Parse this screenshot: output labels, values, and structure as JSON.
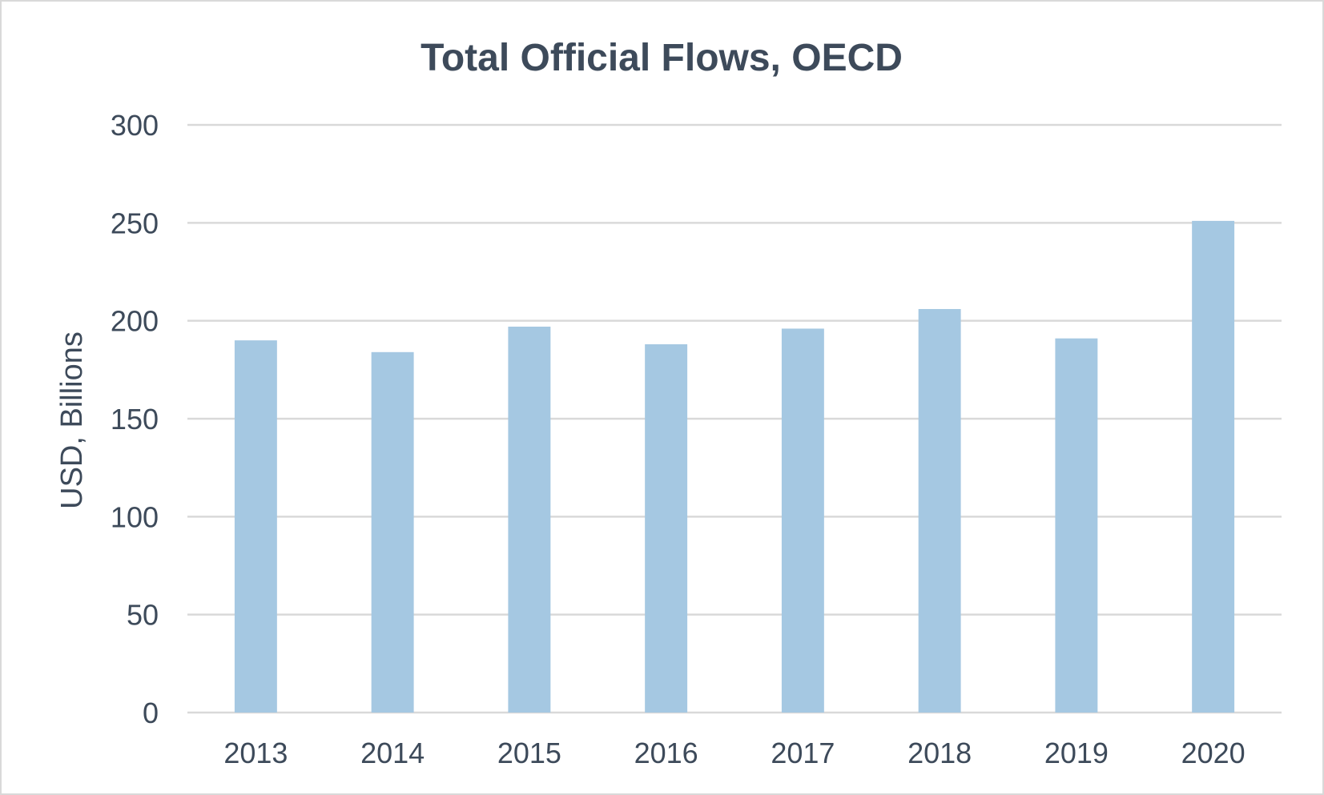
{
  "chart_data": {
    "type": "bar",
    "title": "Total Official Flows, OECD",
    "xlabel": "",
    "ylabel": "USD, Billions",
    "categories": [
      "2013",
      "2014",
      "2015",
      "2016",
      "2017",
      "2018",
      "2019",
      "2020"
    ],
    "values": [
      190,
      184,
      197,
      188,
      196,
      206,
      191,
      251
    ],
    "ylim": [
      0,
      300
    ],
    "yticks": [
      "0",
      "50",
      "100",
      "150",
      "200",
      "250",
      "300"
    ],
    "grid": "horizontal",
    "legend": "none"
  },
  "colors": {
    "bar": "#a5c8e2",
    "grid": "#d9d9d9",
    "text": "#3d4a5a",
    "frame": "#d9d9d9"
  }
}
